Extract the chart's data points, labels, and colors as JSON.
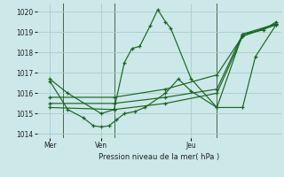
{
  "title": "",
  "xlabel": "Pression niveau de la mer( hPa )",
  "ylabel": "",
  "background_color": "#cce8e8",
  "grid_color": "#aacccc",
  "line_color": "#1a6620",
  "ylim": [
    1013.8,
    1020.4
  ],
  "day_labels": [
    "Mer",
    "Ven",
    "Jeu"
  ],
  "day_positions": [
    0.5,
    2.5,
    6.0
  ],
  "vline_positions": [
    1.0,
    3.0,
    7.0
  ],
  "xlim": [
    0.0,
    9.5
  ],
  "series": [
    {
      "x": [
        0.5,
        1.2,
        2.5,
        3.0,
        3.4,
        3.7,
        4.0,
        4.4,
        4.7,
        5.0,
        5.2,
        6.0,
        7.0,
        8.0,
        8.8,
        9.3
      ],
      "y": [
        1016.7,
        1016.0,
        1015.0,
        1015.2,
        1017.5,
        1018.2,
        1018.3,
        1019.3,
        1020.1,
        1019.5,
        1019.2,
        1016.7,
        1015.3,
        1018.9,
        1019.1,
        1019.5
      ]
    },
    {
      "x": [
        0.5,
        3.0,
        5.0,
        7.0,
        8.0,
        9.3
      ],
      "y": [
        1015.8,
        1015.8,
        1016.2,
        1016.9,
        1018.8,
        1019.4
      ]
    },
    {
      "x": [
        0.5,
        3.0,
        5.0,
        7.0,
        8.0,
        9.3
      ],
      "y": [
        1015.5,
        1015.5,
        1015.8,
        1016.2,
        1018.9,
        1019.4
      ]
    },
    {
      "x": [
        0.5,
        3.0,
        5.0,
        7.0,
        8.0,
        9.3
      ],
      "y": [
        1015.3,
        1015.2,
        1015.5,
        1016.0,
        1018.8,
        1019.35
      ]
    },
    {
      "x": [
        0.5,
        1.2,
        1.8,
        2.2,
        2.5,
        2.8,
        3.1,
        3.4,
        3.8,
        4.2,
        5.0,
        5.5,
        6.0,
        7.0,
        8.0,
        8.5,
        9.3
      ],
      "y": [
        1016.6,
        1015.2,
        1014.8,
        1014.4,
        1014.35,
        1014.4,
        1014.7,
        1015.0,
        1015.1,
        1015.3,
        1016.0,
        1016.7,
        1016.1,
        1015.3,
        1015.3,
        1017.8,
        1019.35
      ]
    }
  ]
}
